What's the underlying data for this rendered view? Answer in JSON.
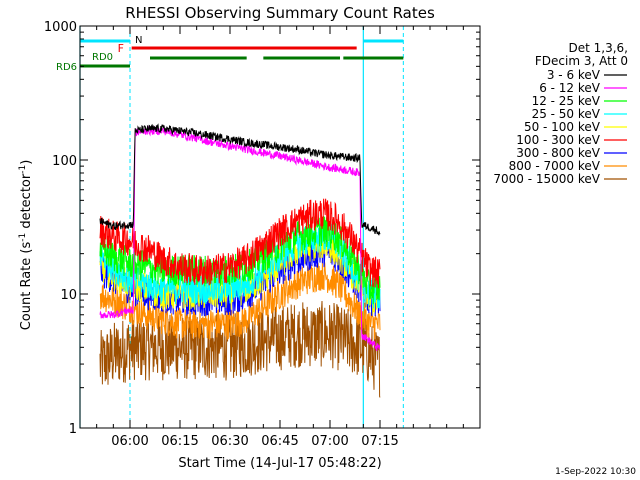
{
  "chart_data": {
    "type": "line",
    "title": "RHESSI Observing Summary Count Rates",
    "xlabel": "Start Time (14-Jul-17 05:48:22)",
    "ylabel_prefix": "Count Rate (s",
    "ylabel_sup": "-1",
    "ylabel_suffix": " detector",
    "ylabel_sup2": "-1",
    "ylabel_end": ")",
    "yscale": "log",
    "ylim": [
      1,
      1000
    ],
    "xlim_minutes": [
      -15,
      105
    ],
    "x_ticks": [
      {
        "minute": 0,
        "label": "06:00"
      },
      {
        "minute": 15,
        "label": "06:15"
      },
      {
        "minute": 30,
        "label": "06:30"
      },
      {
        "minute": 45,
        "label": "06:45"
      },
      {
        "minute": 60,
        "label": "07:00"
      },
      {
        "minute": 75,
        "label": "07:15"
      }
    ],
    "y_ticks": [
      {
        "value": 1,
        "label": "1"
      },
      {
        "value": 10,
        "label": "10"
      },
      {
        "value": 100,
        "label": "100"
      },
      {
        "value": 1000,
        "label": "1000"
      }
    ],
    "legend_header": [
      "Det 1,3,6,",
      "FDecim 3, Att 0"
    ],
    "series": [
      {
        "name": "3 - 6 keV",
        "color": "#000000",
        "points": [
          [
            -9,
            35
          ],
          [
            -5,
            32
          ],
          [
            -1,
            33
          ],
          [
            1,
            33
          ],
          [
            1.5,
            165
          ],
          [
            5,
            170
          ],
          [
            10,
            172
          ],
          [
            15,
            165
          ],
          [
            20,
            158
          ],
          [
            25,
            150
          ],
          [
            30,
            143
          ],
          [
            35,
            135
          ],
          [
            40,
            130
          ],
          [
            45,
            125
          ],
          [
            50,
            120
          ],
          [
            55,
            113
          ],
          [
            60,
            108
          ],
          [
            65,
            105
          ],
          [
            69,
            103
          ],
          [
            69.5,
            33
          ],
          [
            74,
            30
          ],
          [
            75,
            28
          ]
        ]
      },
      {
        "name": "6 - 12 keV",
        "color": "#ff00ff",
        "points": [
          [
            -9,
            7
          ],
          [
            -5,
            7
          ],
          [
            -1,
            7.5
          ],
          [
            1,
            7.5
          ],
          [
            1.5,
            160
          ],
          [
            5,
            165
          ],
          [
            10,
            165
          ],
          [
            15,
            155
          ],
          [
            20,
            145
          ],
          [
            25,
            135
          ],
          [
            30,
            127
          ],
          [
            35,
            120
          ],
          [
            40,
            113
          ],
          [
            45,
            107
          ],
          [
            50,
            100
          ],
          [
            55,
            94
          ],
          [
            60,
            88
          ],
          [
            65,
            84
          ],
          [
            69,
            80
          ],
          [
            69.5,
            5
          ],
          [
            74,
            4
          ],
          [
            75,
            4
          ]
        ]
      },
      {
        "name": "12 - 25 keV",
        "color": "#00ff00",
        "points": [
          [
            -9,
            22
          ],
          [
            -5,
            19
          ],
          [
            0,
            17
          ],
          [
            5,
            16
          ],
          [
            10,
            15
          ],
          [
            15,
            15
          ],
          [
            20,
            15
          ],
          [
            25,
            15
          ],
          [
            30,
            15
          ],
          [
            35,
            16
          ],
          [
            40,
            19
          ],
          [
            45,
            23
          ],
          [
            50,
            27
          ],
          [
            55,
            29
          ],
          [
            58,
            30
          ],
          [
            62,
            27
          ],
          [
            66,
            20
          ],
          [
            69,
            15
          ],
          [
            72,
            11
          ],
          [
            75,
            11
          ]
        ]
      },
      {
        "name": "25 - 50 keV",
        "color": "#00ffff",
        "points": [
          [
            -9,
            20
          ],
          [
            -5,
            16
          ],
          [
            0,
            13
          ],
          [
            5,
            12
          ],
          [
            10,
            11
          ],
          [
            15,
            11
          ],
          [
            20,
            11
          ],
          [
            25,
            11
          ],
          [
            30,
            11
          ],
          [
            35,
            12
          ],
          [
            40,
            15
          ],
          [
            45,
            19
          ],
          [
            50,
            24
          ],
          [
            55,
            26
          ],
          [
            58,
            27
          ],
          [
            62,
            24
          ],
          [
            66,
            17
          ],
          [
            69,
            13
          ],
          [
            72,
            10
          ],
          [
            75,
            10
          ]
        ]
      },
      {
        "name": "50 - 100 keV",
        "color": "#ffff00",
        "points": [
          [
            -9,
            16
          ],
          [
            -5,
            14
          ],
          [
            0,
            12
          ],
          [
            5,
            11
          ],
          [
            10,
            10
          ],
          [
            15,
            10
          ],
          [
            20,
            10
          ],
          [
            25,
            10
          ],
          [
            30,
            10
          ],
          [
            35,
            11
          ],
          [
            40,
            13
          ],
          [
            45,
            17
          ],
          [
            50,
            21
          ],
          [
            55,
            23
          ],
          [
            58,
            24
          ],
          [
            62,
            21
          ],
          [
            66,
            15
          ],
          [
            69,
            12
          ],
          [
            72,
            9
          ],
          [
            75,
            9
          ]
        ]
      },
      {
        "name": "100 - 300 keV",
        "color": "#ff0000",
        "points": [
          [
            -9,
            30
          ],
          [
            -5,
            27
          ],
          [
            0,
            25
          ],
          [
            5,
            22
          ],
          [
            10,
            18
          ],
          [
            15,
            16
          ],
          [
            20,
            15
          ],
          [
            25,
            15
          ],
          [
            30,
            16
          ],
          [
            35,
            18
          ],
          [
            40,
            23
          ],
          [
            45,
            29
          ],
          [
            50,
            35
          ],
          [
            55,
            39
          ],
          [
            58,
            40
          ],
          [
            62,
            36
          ],
          [
            66,
            27
          ],
          [
            69,
            20
          ],
          [
            72,
            15
          ],
          [
            75,
            14
          ]
        ]
      },
      {
        "name": "300 - 800 keV",
        "color": "#0000ff",
        "points": [
          [
            -9,
            15
          ],
          [
            -5,
            13
          ],
          [
            0,
            11
          ],
          [
            5,
            10
          ],
          [
            10,
            9.5
          ],
          [
            15,
            9
          ],
          [
            20,
            9
          ],
          [
            25,
            9
          ],
          [
            30,
            9
          ],
          [
            35,
            10
          ],
          [
            40,
            12
          ],
          [
            45,
            15
          ],
          [
            50,
            18
          ],
          [
            55,
            20
          ],
          [
            58,
            21
          ],
          [
            62,
            19
          ],
          [
            66,
            14
          ],
          [
            69,
            11
          ],
          [
            72,
            9
          ],
          [
            75,
            9
          ]
        ]
      },
      {
        "name": "800 - 7000 keV",
        "color": "#ff8c00",
        "points": [
          [
            -9,
            10
          ],
          [
            -5,
            9
          ],
          [
            0,
            8
          ],
          [
            5,
            7
          ],
          [
            10,
            6.5
          ],
          [
            15,
            6
          ],
          [
            20,
            6
          ],
          [
            25,
            6
          ],
          [
            30,
            6
          ],
          [
            35,
            6.5
          ],
          [
            40,
            8
          ],
          [
            45,
            10
          ],
          [
            50,
            12
          ],
          [
            55,
            13.5
          ],
          [
            58,
            14
          ],
          [
            62,
            12
          ],
          [
            66,
            9
          ],
          [
            69,
            7
          ],
          [
            72,
            6
          ],
          [
            75,
            6
          ]
        ]
      },
      {
        "name": "7000 - 15000 keV",
        "color": "#a05000",
        "points": [
          [
            -9,
            3
          ],
          [
            -5,
            3.5
          ],
          [
            0,
            4
          ],
          [
            5,
            4
          ],
          [
            10,
            4
          ],
          [
            20,
            4
          ],
          [
            30,
            4
          ],
          [
            40,
            4.5
          ],
          [
            50,
            5
          ],
          [
            60,
            5
          ],
          [
            70,
            4
          ],
          [
            75,
            3
          ]
        ]
      }
    ],
    "flag_labels": {
      "n": "N",
      "f": "F",
      "rd0": "RD0",
      "rd6": "RD6"
    },
    "flags": {
      "cyan_a": [
        -15,
        0
      ],
      "cyan_b": [
        70,
        82
      ],
      "red_f": [
        0.5,
        68
      ],
      "green_rd0": [
        -15,
        0
      ],
      "green_rd6": [
        [
          6,
          35
        ],
        [
          40,
          63
        ],
        [
          64,
          82
        ]
      ]
    },
    "vlines_cyan_solid": [
      -15,
      70
    ],
    "vlines_cyan_dashed": [
      0,
      82
    ],
    "footer_date": "1-Sep-2022 10:30"
  }
}
